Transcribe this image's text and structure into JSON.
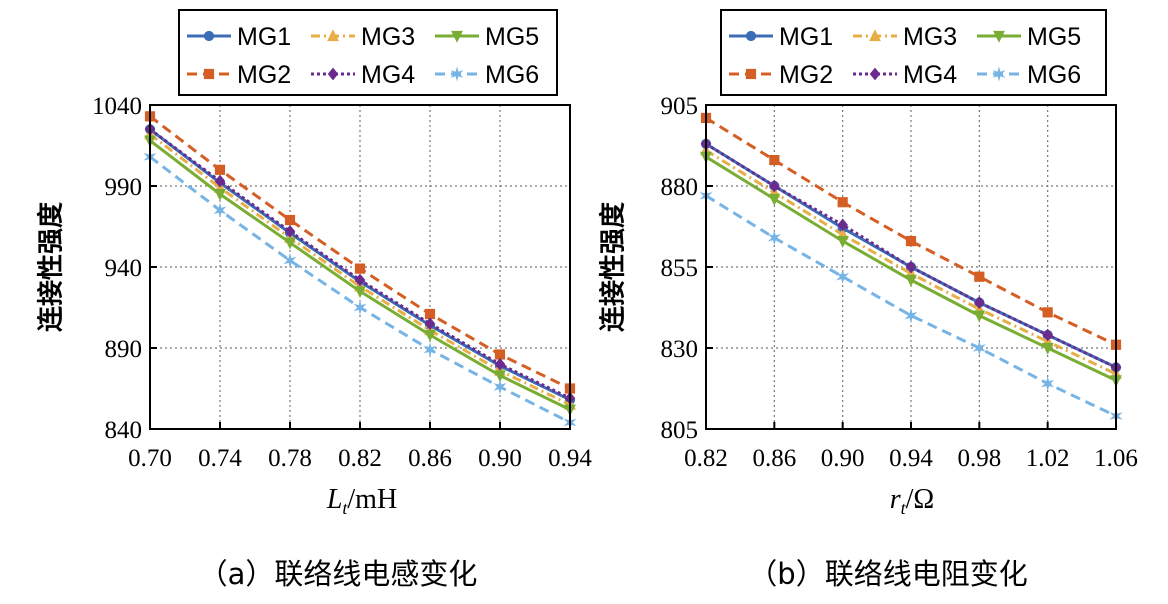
{
  "chart_data": [
    {
      "type": "line",
      "caption": "（a）联络线电感变化",
      "xlabel_main": "L",
      "xlabel_sub": "t",
      "xlabel_unit": "/mH",
      "ylabel": "连接性强度",
      "x": [
        0.7,
        0.74,
        0.78,
        0.82,
        0.86,
        0.9,
        0.94
      ],
      "xtick_labels": [
        "0.70",
        "0.74",
        "0.78",
        "0.82",
        "0.86",
        "0.90",
        "0.94"
      ],
      "ytick_labels": [
        "1040",
        "990",
        "940",
        "890",
        "840"
      ],
      "yticks": [
        1040,
        990,
        940,
        890,
        840
      ],
      "ylim": [
        840,
        1040
      ],
      "grid": true,
      "legend_position": "top",
      "series": [
        {
          "name": "MG1",
          "values": [
            1025,
            992,
            961,
            931,
            904,
            879,
            858
          ]
        },
        {
          "name": "MG2",
          "values": [
            1033,
            1000,
            969,
            939,
            911,
            886,
            865
          ]
        },
        {
          "name": "MG3",
          "values": [
            1022,
            989,
            958,
            928,
            901,
            876,
            855
          ]
        },
        {
          "name": "MG4",
          "values": [
            1025,
            993,
            962,
            932,
            905,
            880,
            859
          ]
        },
        {
          "name": "MG5",
          "values": [
            1018,
            985,
            955,
            925,
            898,
            873,
            852
          ]
        },
        {
          "name": "MG6",
          "values": [
            1008,
            975,
            944,
            915,
            889,
            866,
            844
          ]
        }
      ]
    },
    {
      "type": "line",
      "caption": "（b）联络线电阻变化",
      "xlabel_main": "r",
      "xlabel_sub": "t",
      "xlabel_unit": "/Ω",
      "ylabel": "连接性强度",
      "x": [
        0.82,
        0.86,
        0.9,
        0.94,
        0.98,
        1.02,
        1.06
      ],
      "xtick_labels": [
        "0.82",
        "0.86",
        "0.90",
        "0.94",
        "0.98",
        "1.02",
        "1.06"
      ],
      "ytick_labels": [
        "905",
        "880",
        "855",
        "830",
        "805"
      ],
      "yticks": [
        905,
        880,
        855,
        830,
        805
      ],
      "ylim": [
        805,
        905
      ],
      "grid": true,
      "legend_position": "top",
      "series": [
        {
          "name": "MG1",
          "values": [
            893,
            880,
            867,
            855,
            844,
            834,
            824
          ]
        },
        {
          "name": "MG2",
          "values": [
            901,
            888,
            875,
            863,
            852,
            841,
            831
          ]
        },
        {
          "name": "MG3",
          "values": [
            891,
            878,
            865,
            853,
            842,
            832,
            822
          ]
        },
        {
          "name": "MG4",
          "values": [
            893,
            880,
            868,
            855,
            844,
            834,
            824
          ]
        },
        {
          "name": "MG5",
          "values": [
            889,
            876,
            863,
            851,
            840,
            830,
            820
          ]
        },
        {
          "name": "MG6",
          "values": [
            877,
            864,
            852,
            840,
            830,
            819,
            809
          ]
        }
      ]
    }
  ],
  "series_styles": {
    "MG1": {
      "color": "#3a6db5",
      "dash": "",
      "marker": "circle"
    },
    "MG2": {
      "color": "#d45e23",
      "dash": "10,6",
      "marker": "square"
    },
    "MG3": {
      "color": "#e8ae46",
      "dash": "9,4,2,4",
      "marker": "triangle-up"
    },
    "MG4": {
      "color": "#6b2a8f",
      "dash": "3,3",
      "marker": "diamond"
    },
    "MG5": {
      "color": "#79ad33",
      "dash": "",
      "marker": "triangle-down"
    },
    "MG6": {
      "color": "#77b4e6",
      "dash": "10,6",
      "marker": "star"
    }
  }
}
